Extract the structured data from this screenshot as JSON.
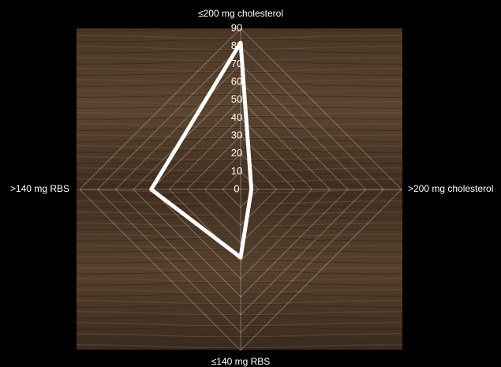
{
  "chart_data": {
    "type": "radar",
    "categories": [
      "≤200 mg cholesterol",
      ">200 mg cholesterol",
      "≤140 mg RBS",
      ">140 mg RBS"
    ],
    "values": [
      82,
      6,
      38,
      50
    ],
    "color": "#ffffff",
    "ylim": [
      0,
      90
    ],
    "yticks": [
      0,
      10,
      20,
      30,
      40,
      50,
      60,
      70,
      80,
      90
    ],
    "grid": true
  }
}
